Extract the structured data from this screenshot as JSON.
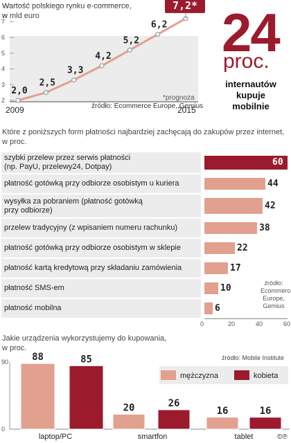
{
  "colors": {
    "accent": "#9b1b2c",
    "bar": "#e2a08e",
    "bg": "#ececec",
    "line": "#e2a08e"
  },
  "chart1": {
    "title": "Wartość polskiego rynku e-commerce,",
    "subtitle": "w mld euro",
    "forecast_note": "*prognoza",
    "source": "źródło: Ecommerce Europe, Gemius",
    "x_start": "2009",
    "x_end": "2015",
    "y_ticks": [
      "2",
      "3",
      "4",
      "5",
      "6",
      "7"
    ]
  },
  "chart_data": [
    {
      "type": "line",
      "x": [
        "2009",
        "2010",
        "2011",
        "2012",
        "2013",
        "2014",
        "2015"
      ],
      "values": [
        2.0,
        2.5,
        3.3,
        4.2,
        5.2,
        6.2,
        7.2
      ],
      "labels": [
        "2,0",
        "2,5",
        "3,3",
        "4,2",
        "5,2",
        "6,2",
        "7,2*"
      ],
      "ylim": [
        2,
        7.5
      ],
      "grid": false
    },
    {
      "type": "bar",
      "orientation": "horizontal",
      "categories": [
        "szybki przelew przez serwis płatności (np. PayU, przelewy24, Dotpay)",
        "płatność gotówką przy odbiorze osobistym u kuriera",
        "wysyłka za pobraniem (płatność gotówką przy odbiorze)",
        "przelew tradycyjny (z wpisaniem numeru rachunku)",
        "płatność gotówką przy odbiorze osobistym w sklepie",
        "płatność kartą kredytową przy składaniu zamówienia",
        "płatność SMS-em",
        "płatność mobilna"
      ],
      "values": [
        60,
        44,
        42,
        38,
        22,
        17,
        10,
        6
      ],
      "xlim": [
        0,
        60
      ],
      "x_ticks": [
        "0",
        "20",
        "40",
        "60"
      ]
    },
    {
      "type": "bar",
      "categories": [
        "laptop/PC",
        "smartfon",
        "tablet"
      ],
      "series": [
        {
          "name": "mężczyzna",
          "values": [
            88,
            20,
            16
          ]
        },
        {
          "name": "kobieta",
          "values": [
            85,
            26,
            16
          ]
        }
      ],
      "ylim": [
        0,
        90
      ],
      "y_ticks": [
        "0",
        "90"
      ],
      "legend": "top-right"
    }
  ],
  "big_stat": {
    "number": "24",
    "unit": "proc.",
    "line1": "internautów",
    "line2": "kupuje",
    "line3": "mobilnie"
  },
  "chart2": {
    "question": "Które z poniższych form płatności najbardziej zachęcają do zakupów przez internet,",
    "question2": "w proc.",
    "source1": "źródło:",
    "source2": "Ecommerce",
    "source3": "Europe,",
    "source4": "Gemius",
    "label_rows": [
      [
        "szybki przelew przez serwis płatności",
        "(np. PayU, przelewy24, Dotpay)"
      ],
      [
        "płatność gotówką przy odbiorze osobistym u kuriera"
      ],
      [
        "wysyłka za pobraniem (płatność gotówką",
        "przy odbiorze)"
      ],
      [
        "przelew tradycyjny (z wpisaniem numeru rachunku)"
      ],
      [
        "płatność gotówką przy odbiorze osobistym w sklepie"
      ],
      [
        "płatność kartą kredytową przy składaniu zamówienia"
      ],
      [
        "płatność SMS-em"
      ],
      [
        "płatność mobilna"
      ]
    ]
  },
  "chart3": {
    "question": "Jakie urządzenia wykorzystujemy do kupowania,",
    "question2": "w proc.",
    "source": "źródło: Mobile Institute"
  },
  "credit": "©℗"
}
